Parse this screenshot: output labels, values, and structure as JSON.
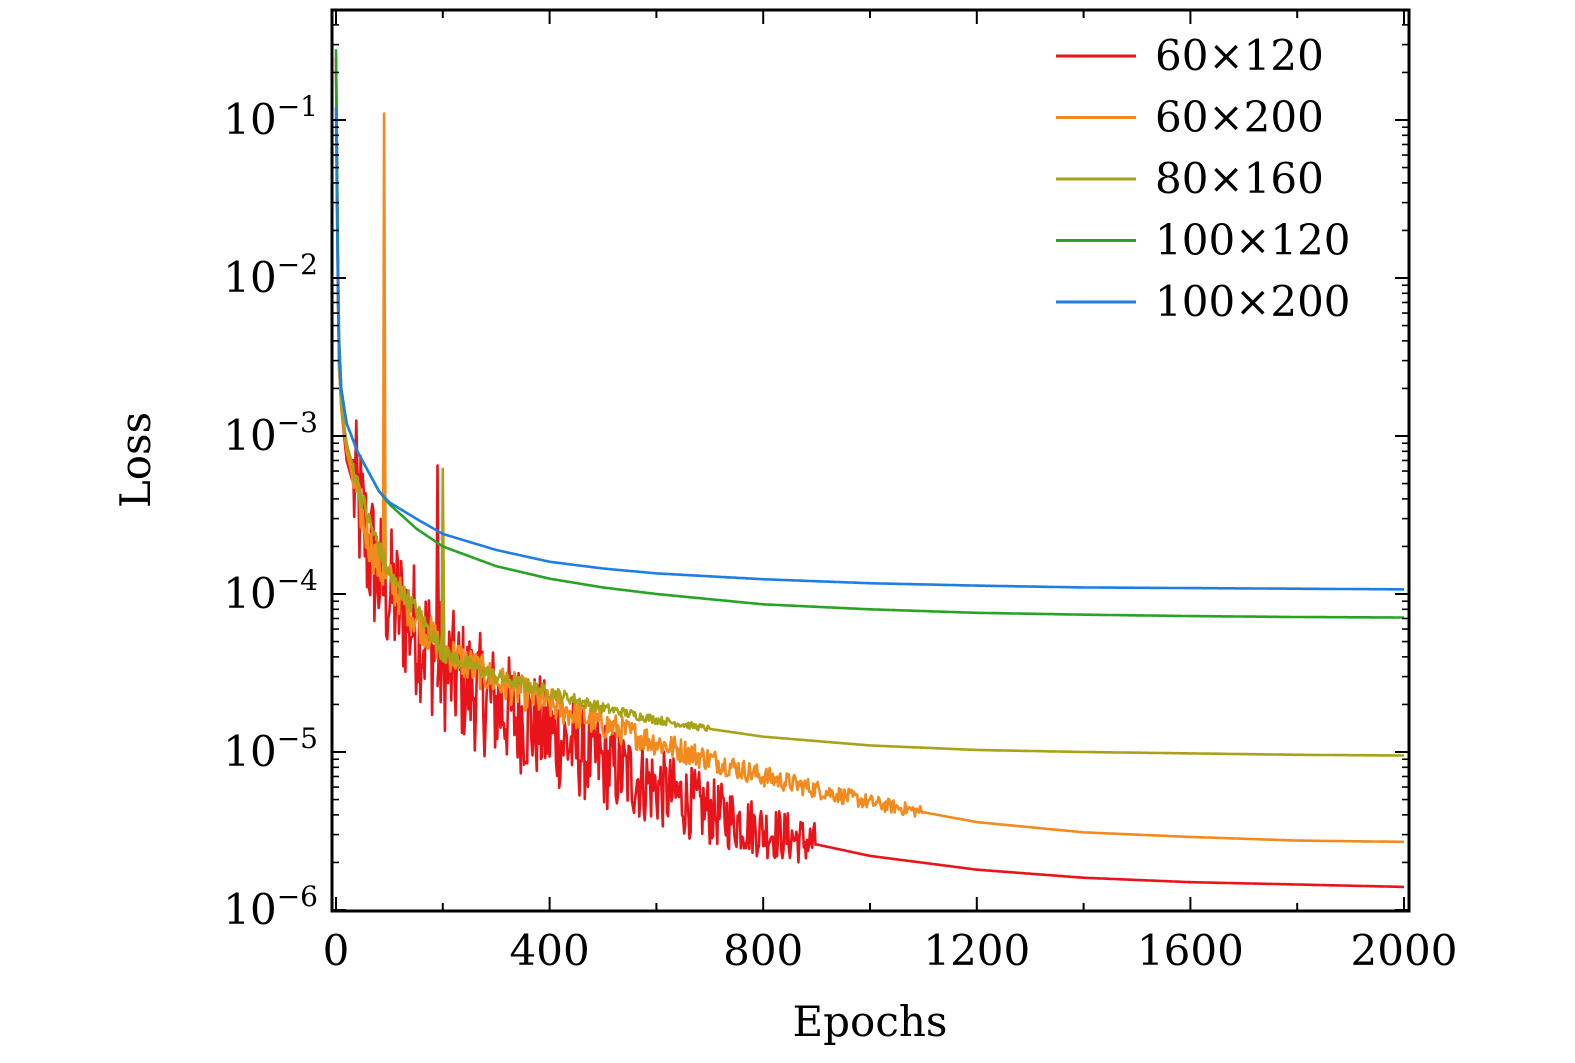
{
  "chart_data": {
    "type": "line",
    "title": "",
    "xlabel": "Epochs",
    "ylabel": "Loss",
    "xlim": [
      0,
      2000
    ],
    "ylim": [
      1e-06,
      0.5
    ],
    "yscale": "log",
    "grid": false,
    "legend_position": "top-right",
    "x_ticks": [
      0,
      400,
      800,
      1200,
      1600,
      2000
    ],
    "x_tick_labels": [
      "0",
      "400",
      "800",
      "1200",
      "1600",
      "2000"
    ],
    "y_ticks": [
      1e-06,
      1e-05,
      0.0001,
      0.001,
      0.01,
      0.1
    ],
    "y_tick_labels": [
      {
        "base": "10",
        "exp": "−6"
      },
      {
        "base": "10",
        "exp": "−5"
      },
      {
        "base": "10",
        "exp": "−4"
      },
      {
        "base": "10",
        "exp": "−3"
      },
      {
        "base": "10",
        "exp": "−2"
      },
      {
        "base": "10",
        "exp": "−1"
      }
    ],
    "series": [
      {
        "name": "60×120",
        "color": "#e8141a",
        "points": [
          [
            0,
            0.25
          ],
          [
            5,
            0.003
          ],
          [
            10,
            0.0015
          ],
          [
            20,
            0.0007
          ],
          [
            40,
            0.0004
          ],
          [
            60,
            0.0002
          ],
          [
            80,
            0.00013
          ],
          [
            100,
            0.0001
          ],
          [
            150,
            6e-05
          ],
          [
            200,
            3.5e-05
          ],
          [
            250,
            2.6e-05
          ],
          [
            300,
            2e-05
          ],
          [
            400,
            1.3e-05
          ],
          [
            500,
            8.5e-06
          ],
          [
            600,
            6e-06
          ],
          [
            700,
            4.2e-06
          ],
          [
            800,
            3.2e-06
          ],
          [
            900,
            2.6e-06
          ],
          [
            1000,
            2.2e-06
          ],
          [
            1200,
            1.8e-06
          ],
          [
            1400,
            1.6e-06
          ],
          [
            1600,
            1.5e-06
          ],
          [
            1800,
            1.45e-06
          ],
          [
            2000,
            1.4e-06
          ]
        ],
        "spikes": [
          [
            90,
            0.0033
          ],
          [
            190,
            0.00065
          ]
        ]
      },
      {
        "name": "60×200",
        "color": "#f28a1e",
        "points": [
          [
            0,
            0.25
          ],
          [
            5,
            0.003
          ],
          [
            10,
            0.0015
          ],
          [
            20,
            0.0008
          ],
          [
            40,
            0.0004
          ],
          [
            60,
            0.00022
          ],
          [
            80,
            0.00015
          ],
          [
            100,
            0.00012
          ],
          [
            150,
            7e-05
          ],
          [
            200,
            4.5e-05
          ],
          [
            300,
            2.8e-05
          ],
          [
            400,
            2e-05
          ],
          [
            500,
            1.5e-05
          ],
          [
            600,
            1.15e-05
          ],
          [
            700,
            9e-06
          ],
          [
            800,
            7e-06
          ],
          [
            900,
            5.8e-06
          ],
          [
            1000,
            4.8e-06
          ],
          [
            1200,
            3.6e-06
          ],
          [
            1400,
            3.1e-06
          ],
          [
            1600,
            2.9e-06
          ],
          [
            1800,
            2.75e-06
          ],
          [
            2000,
            2.7e-06
          ]
        ],
        "spikes": [
          [
            90,
            0.11
          ]
        ]
      },
      {
        "name": "80×160",
        "color": "#a8a219",
        "points": [
          [
            0,
            0.2
          ],
          [
            5,
            0.003
          ],
          [
            10,
            0.0016
          ],
          [
            20,
            0.0009
          ],
          [
            40,
            0.0005
          ],
          [
            60,
            0.0003
          ],
          [
            80,
            0.0002
          ],
          [
            100,
            0.00013
          ],
          [
            150,
            8e-05
          ],
          [
            200,
            4.2e-05
          ],
          [
            300,
            3e-05
          ],
          [
            400,
            2.4e-05
          ],
          [
            500,
            1.9e-05
          ],
          [
            600,
            1.6e-05
          ],
          [
            700,
            1.4e-05
          ],
          [
            800,
            1.25e-05
          ],
          [
            1000,
            1.1e-05
          ],
          [
            1200,
            1.03e-05
          ],
          [
            1400,
            1e-05
          ],
          [
            1600,
            9.8e-06
          ],
          [
            1800,
            9.6e-06
          ],
          [
            2000,
            9.5e-06
          ]
        ],
        "spikes": [
          [
            200,
            0.00062
          ]
        ]
      },
      {
        "name": "100×120",
        "color": "#27a326",
        "points": [
          [
            0,
            0.28
          ],
          [
            3,
            0.02
          ],
          [
            6,
            0.004
          ],
          [
            10,
            0.002
          ],
          [
            20,
            0.0012
          ],
          [
            40,
            0.0008
          ],
          [
            60,
            0.0006
          ],
          [
            80,
            0.00045
          ],
          [
            100,
            0.00037
          ],
          [
            150,
            0.00026
          ],
          [
            200,
            0.0002
          ],
          [
            300,
            0.00015
          ],
          [
            400,
            0.000125
          ],
          [
            500,
            0.00011
          ],
          [
            600,
            0.0001
          ],
          [
            800,
            8.6e-05
          ],
          [
            1000,
            8e-05
          ],
          [
            1200,
            7.6e-05
          ],
          [
            1400,
            7.4e-05
          ],
          [
            1600,
            7.25e-05
          ],
          [
            1800,
            7.15e-05
          ],
          [
            2000,
            7.1e-05
          ]
        ]
      },
      {
        "name": "100×200",
        "color": "#1e7fe0",
        "points": [
          [
            0,
            0.12
          ],
          [
            3,
            0.01
          ],
          [
            6,
            0.003
          ],
          [
            10,
            0.0019
          ],
          [
            20,
            0.0012
          ],
          [
            40,
            0.0008
          ],
          [
            60,
            0.0006
          ],
          [
            80,
            0.00045
          ],
          [
            100,
            0.00038
          ],
          [
            150,
            0.0003
          ],
          [
            200,
            0.00024
          ],
          [
            300,
            0.00019
          ],
          [
            400,
            0.00016
          ],
          [
            500,
            0.000145
          ],
          [
            600,
            0.000135
          ],
          [
            800,
            0.000124
          ],
          [
            1000,
            0.000117
          ],
          [
            1200,
            0.000113
          ],
          [
            1400,
            0.00011
          ],
          [
            1600,
            0.000109
          ],
          [
            1800,
            0.000108
          ],
          [
            2000,
            0.000107
          ]
        ]
      }
    ]
  }
}
